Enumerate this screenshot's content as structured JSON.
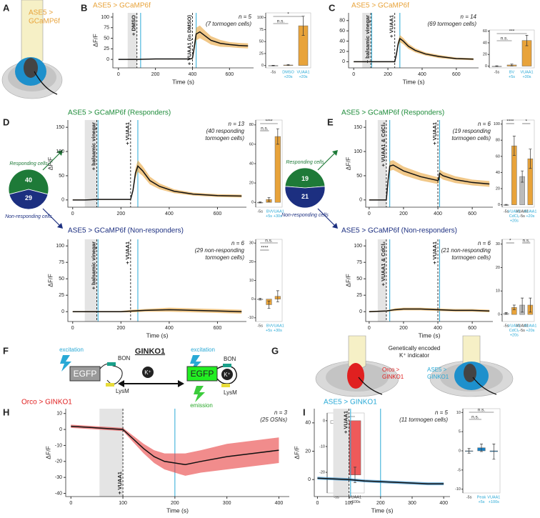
{
  "panel_labels": [
    "A",
    "B",
    "C",
    "D",
    "E",
    "F",
    "G",
    "H",
    "I"
  ],
  "diagram_a": {
    "lines": [
      "ASE5 >",
      "GCaMP6f"
    ]
  },
  "diagram_f": {
    "title": "GINKO1",
    "left": {
      "excitation": "excitation",
      "bon": "BON",
      "egfp": "EGFP",
      "lysm": "LysM"
    },
    "ion": "K⁺",
    "right": {
      "excitation": "excitation",
      "bon": "BON",
      "egfp": "EGFP",
      "ion": "K⁺",
      "lysm": "LysM",
      "emission": "emission"
    }
  },
  "diagram_g": {
    "heading": [
      "Genetically encoded",
      "K⁺ indicator"
    ],
    "left_label": [
      "Orco >",
      "GINKO1"
    ],
    "right_label": [
      "ASE5 >",
      "GINKO1"
    ]
  },
  "chart_data": [
    {
      "type": "trace",
      "title": "ASE5 > GCaMP6f",
      "title_color": "#e8a33a",
      "notes": [
        "n = 5",
        "(7 tormogen cells)"
      ],
      "xlabel": "Time (s)",
      "ylabel": "ΔF/F",
      "xlim": [
        -30,
        730
      ],
      "xticks": [
        0,
        200,
        400,
        600
      ],
      "ylim": [
        -20,
        110
      ],
      "yticks": [
        0,
        25,
        50,
        75,
        100
      ],
      "shade": [
        50,
        100
      ],
      "events": [
        {
          "label": "+ DMSO",
          "x": 100
        },
        {
          "label": "+ VUAA1 (in DMSO)",
          "x": 400
        }
      ],
      "cyan_x": [
        120,
        420
      ],
      "x": [
        0,
        50,
        100,
        200,
        300,
        390,
        400,
        410,
        420,
        440,
        470,
        500,
        550,
        600,
        650,
        700
      ],
      "values": [
        0,
        0,
        0,
        1,
        1,
        1,
        3,
        30,
        60,
        65,
        55,
        45,
        38,
        35,
        33,
        32
      ],
      "errors": [
        0,
        1,
        1,
        1,
        1,
        1,
        2,
        10,
        15,
        15,
        12,
        10,
        8,
        6,
        6,
        6
      ],
      "line_color": "#111111",
      "band_color": "#e8a33a"
    },
    {
      "type": "bar",
      "ylim": [
        -5,
        110
      ],
      "yticks": [
        0,
        25,
        50,
        75,
        100
      ],
      "categories": [
        [
          "-5s"
        ],
        [
          "DMSO",
          "+20s"
        ],
        [
          "VUAA1",
          "+20s"
        ]
      ],
      "values": [
        0,
        1,
        83
      ],
      "errors": [
        0.5,
        1,
        20
      ],
      "colors": [
        "#ffffff",
        "#e8a33a",
        "#e8a33a"
      ],
      "label_colors": [
        "#333333",
        "#29a9d6",
        "#29a9d6"
      ],
      "significance": [
        {
          "label": "n.s.",
          "from": 0,
          "to": 1
        },
        {
          "label": "*",
          "from": 0,
          "to": 2
        }
      ]
    },
    {
      "type": "trace",
      "title": "ASE5 > GCaMP6f",
      "title_color": "#e8a33a",
      "notes": [
        "n = 14",
        "(69 tormogen cells)"
      ],
      "xlabel": "Time (s)",
      "xlim": [
        -30,
        730
      ],
      "xticks": [
        0,
        200,
        400,
        600
      ],
      "ylim": [
        -12,
        95
      ],
      "yticks": [
        0,
        20,
        40,
        60,
        80
      ],
      "shade": [
        50,
        100
      ],
      "events": [
        {
          "label": "+ balsamic vinegar",
          "x": 100
        },
        {
          "label": "+ VUAA1",
          "x": 240
        }
      ],
      "cyan_x": [
        105,
        270
      ],
      "x": [
        0,
        50,
        100,
        150,
        200,
        240,
        250,
        260,
        270,
        290,
        320,
        360,
        420,
        500,
        600,
        700
      ],
      "values": [
        0,
        0,
        0,
        0,
        0,
        0,
        15,
        35,
        45,
        40,
        30,
        22,
        15,
        10,
        6,
        5
      ],
      "errors": [
        1,
        1,
        1,
        1,
        1,
        1,
        4,
        6,
        7,
        6,
        5,
        4,
        3,
        3,
        2,
        2
      ],
      "line_color": "#111111",
      "band_color": "#e8a33a"
    },
    {
      "type": "bar",
      "ylim": [
        -3,
        62
      ],
      "yticks": [
        0,
        20,
        40,
        60
      ],
      "categories": [
        [
          "-5s"
        ],
        [
          "BV",
          "+5s"
        ],
        [
          "VUAA1",
          "+30s"
        ]
      ],
      "values": [
        0,
        2,
        44
      ],
      "errors": [
        0.5,
        1.5,
        9
      ],
      "colors": [
        "#ffffff",
        "#e8a33a",
        "#e8a33a"
      ],
      "label_colors": [
        "#333333",
        "#29a9d6",
        "#29a9d6"
      ],
      "significance": [
        {
          "label": "n.s.",
          "from": 0,
          "to": 1
        },
        {
          "label": "***",
          "from": 0,
          "to": 2
        }
      ]
    },
    {
      "type": "trace",
      "title": "ASE5 > GCaMP6f (Responders)",
      "title_color": "#1e8c3a",
      "notes": [
        "n = 13",
        "(40 responding",
        "tormogen cells)"
      ],
      "ylabel": "ΔF/F",
      "xlim": [
        -20,
        720
      ],
      "xticks": [
        0,
        200,
        400,
        600
      ],
      "ylim": [
        -15,
        165
      ],
      "yticks": [
        0,
        50,
        100,
        150
      ],
      "shade": [
        50,
        100
      ],
      "events": [
        {
          "label": "+ balsamic vinegar",
          "x": 100
        },
        {
          "label": "+ VUAA1",
          "x": 240
        }
      ],
      "cyan_x": [
        105,
        270
      ],
      "x": [
        0,
        50,
        100,
        150,
        200,
        240,
        250,
        260,
        270,
        290,
        320,
        360,
        420,
        500,
        600,
        700
      ],
      "values": [
        0,
        0,
        1,
        1,
        1,
        1,
        20,
        55,
        70,
        60,
        40,
        28,
        18,
        12,
        9,
        8
      ],
      "errors": [
        1,
        1,
        1,
        1,
        1,
        1,
        5,
        10,
        12,
        10,
        8,
        6,
        4,
        3,
        3,
        3
      ],
      "line_color": "#111111",
      "band_color": "#e8a33a"
    },
    {
      "type": "bar",
      "ylim": [
        -5,
        85
      ],
      "yticks": [
        0,
        20,
        40,
        60,
        80
      ],
      "categories": [
        [
          "-5s"
        ],
        [
          "BV",
          "+5s"
        ],
        [
          "VUAA1",
          "+30s"
        ]
      ],
      "values": [
        0,
        3,
        68
      ],
      "errors": [
        0.5,
        2,
        8
      ],
      "colors": [
        "#ffffff",
        "#e8a33a",
        "#e8a33a"
      ],
      "label_colors": [
        "#333333",
        "#29a9d6",
        "#29a9d6"
      ],
      "significance": [
        {
          "label": "n.s.",
          "from": 0,
          "to": 1
        },
        {
          "label": "****",
          "from": 0,
          "to": 2
        }
      ]
    },
    {
      "type": "trace",
      "title": "ASE5 > GCaMP6f (Non-responders)",
      "title_color": "#1c2f80",
      "notes": [
        "n = 6",
        "(29 non-responding",
        "tormogen cells)"
      ],
      "xlabel": "Time (s)",
      "ylabel": "ΔF/F",
      "xlim": [
        -20,
        720
      ],
      "xticks": [
        0,
        200,
        400,
        600
      ],
      "ylim": [
        -15,
        110
      ],
      "yticks": [
        0,
        25,
        50,
        75,
        100
      ],
      "shade": [
        50,
        100
      ],
      "events": [
        {
          "label": "+ balsamic vinegar",
          "x": 100
        },
        {
          "label": "+ VUAA1",
          "x": 240
        }
      ],
      "cyan_x": [
        105,
        270
      ],
      "x": [
        0,
        100,
        200,
        250,
        300,
        400,
        500,
        600,
        700
      ],
      "values": [
        0,
        0,
        0,
        1,
        2,
        3,
        2,
        1,
        0
      ],
      "errors": [
        1,
        1,
        1,
        2,
        2,
        3,
        3,
        3,
        3
      ],
      "line_color": "#111111",
      "band_color": "#e8a33a"
    },
    {
      "type": "bar",
      "ylim": [
        -12,
        32
      ],
      "yticks": [
        -10,
        0,
        10,
        20,
        30
      ],
      "categories": [
        [
          "-5s"
        ],
        [
          "BV",
          "+5s"
        ],
        [
          "VUAA1",
          "+30s"
        ]
      ],
      "values": [
        0,
        -3,
        1.5
      ],
      "errors": [
        0.5,
        2,
        3
      ],
      "colors": [
        "#ffffff",
        "#e8a33a",
        "#e8a33a"
      ],
      "label_colors": [
        "#333333",
        "#29a9d6",
        "#29a9d6"
      ],
      "significance": [
        {
          "label": "****",
          "from": 0,
          "to": 1
        },
        {
          "label": "n.s.",
          "from": 0,
          "to": 2
        }
      ]
    },
    {
      "type": "pie",
      "categories": [
        "Responding cells",
        "Non-responding cells"
      ],
      "values": [
        40,
        29
      ],
      "colors": [
        "#1e7a38",
        "#1c2f80"
      ]
    },
    {
      "type": "trace",
      "title": "ASE5 > GCaMP6f (Responders)",
      "title_color": "#1e8c3a",
      "notes": [
        "n = 6",
        "(19 responding",
        "tormogen cells)"
      ],
      "ylabel": "ΔF/F",
      "xlim": [
        -20,
        720
      ],
      "xticks": [
        0,
        200,
        400,
        600
      ],
      "ylim": [
        -15,
        165
      ],
      "yticks": [
        0,
        50,
        100,
        150
      ],
      "shade": [
        50,
        100
      ],
      "events": [
        {
          "label": "+ VUAA1 & CdCl₂",
          "x": 100
        },
        {
          "label": "+ VUAA1",
          "x": 400
        }
      ],
      "cyan_x": [
        120,
        410
      ],
      "x": [
        0,
        50,
        100,
        110,
        120,
        140,
        200,
        300,
        400,
        405,
        410,
        430,
        500,
        600,
        700
      ],
      "values": [
        0,
        0,
        0,
        40,
        70,
        72,
        60,
        48,
        40,
        42,
        55,
        50,
        42,
        36,
        33
      ],
      "errors": [
        1,
        1,
        1,
        8,
        10,
        10,
        9,
        8,
        7,
        7,
        8,
        8,
        7,
        6,
        6
      ],
      "line_color": "#111111",
      "band_color": "#e8a33a"
    },
    {
      "type": "bar",
      "ylim": [
        -3,
        105
      ],
      "yticks": [
        0,
        20,
        40,
        60,
        80,
        100
      ],
      "categories": [
        [
          "-5s"
        ],
        [
          "VUAA1",
          "CdCl₂",
          "+20s"
        ],
        [
          "VUAA1",
          "-5s"
        ],
        [
          "VUAA1",
          "+20s"
        ]
      ],
      "values": [
        0,
        73,
        35,
        57
      ],
      "errors": [
        0.5,
        12,
        7,
        12
      ],
      "colors": [
        "#ffffff",
        "#e8a33a",
        "#bbbbbb",
        "#e8a33a"
      ],
      "label_colors": [
        "#333333",
        "#29a9d6",
        "#333333",
        "#29a9d6"
      ],
      "significance": [
        {
          "label": "****",
          "from": 0,
          "to": 1
        },
        {
          "label": "*",
          "from": 2,
          "to": 3
        }
      ]
    },
    {
      "type": "trace",
      "title": "ASE5 > GCaMP6f (Non-responders)",
      "title_color": "#1c2f80",
      "notes": [
        "n = 6",
        "(21 non-responding",
        "tormogen cells)"
      ],
      "xlabel": "Time (s)",
      "ylabel": "ΔF/F",
      "xlim": [
        -20,
        720
      ],
      "xticks": [
        0,
        200,
        400,
        600
      ],
      "ylim": [
        -15,
        110
      ],
      "yticks": [
        0,
        25,
        50,
        75,
        100
      ],
      "shade": [
        50,
        100
      ],
      "events": [
        {
          "label": "+ VUAA1 & CdCl₂",
          "x": 100
        },
        {
          "label": "+ VUAA1",
          "x": 400
        }
      ],
      "cyan_x": [
        120,
        410
      ],
      "x": [
        0,
        100,
        150,
        200,
        300,
        400,
        500,
        600,
        700
      ],
      "values": [
        0,
        1,
        3,
        4,
        4,
        3,
        2,
        2,
        1
      ],
      "errors": [
        1,
        1,
        2,
        2,
        2,
        2,
        2,
        2,
        2
      ],
      "line_color": "#111111",
      "band_color": "#e8a33a"
    },
    {
      "type": "bar",
      "ylim": [
        -3,
        32
      ],
      "yticks": [
        0,
        10,
        20,
        30
      ],
      "categories": [
        [
          "-5s"
        ],
        [
          "VUAA1",
          "CdCl₂",
          "+20s"
        ],
        [
          "VUAA1",
          "-5s"
        ],
        [
          "VUAA1",
          "+20s"
        ]
      ],
      "values": [
        0.5,
        3,
        4,
        4
      ],
      "errors": [
        0.3,
        1,
        3,
        3
      ],
      "colors": [
        "#ffffff",
        "#e8a33a",
        "#bbbbbb",
        "#e8a33a"
      ],
      "label_colors": [
        "#333333",
        "#29a9d6",
        "#333333",
        "#29a9d6"
      ],
      "significance": [
        {
          "label": "*",
          "from": 0,
          "to": 1
        },
        {
          "label": "n.s.",
          "from": 2,
          "to": 3
        }
      ]
    },
    {
      "type": "pie",
      "categories": [
        "Responding cells",
        "Non-responding cells"
      ],
      "values": [
        19,
        21
      ],
      "colors": [
        "#1e7a38",
        "#1c2f80"
      ]
    },
    {
      "type": "trace",
      "title": "Orco > GINKO1",
      "title_color": "#e02020",
      "notes": [
        "n = 3",
        "(25 OSNs)"
      ],
      "xlabel": "Time (s)",
      "ylabel": "ΔF/F",
      "xlim": [
        -10,
        420
      ],
      "xticks": [
        0,
        100,
        200,
        300,
        400
      ],
      "ylim": [
        -42,
        13
      ],
      "yticks": [
        10,
        0,
        -10,
        -20,
        -30,
        -40
      ],
      "shade": [
        55,
        100
      ],
      "events": [
        {
          "label": "+ VUAA1",
          "x": 100
        }
      ],
      "cyan_x": [
        200
      ],
      "x": [
        0,
        50,
        100,
        120,
        140,
        160,
        180,
        200,
        220,
        250,
        300,
        350,
        400
      ],
      "values": [
        2,
        1,
        0,
        -6,
        -12,
        -17,
        -20,
        -21,
        -22,
        -20,
        -17,
        -15,
        -13
      ],
      "errors": [
        1,
        1,
        1,
        2,
        3,
        4,
        5,
        6,
        7,
        7,
        8,
        8,
        8
      ],
      "line_color": "#111111",
      "band_color": "#e84040"
    },
    {
      "type": "bar",
      "ylim": [
        -28,
        3
      ],
      "yticks": [
        0,
        -10,
        -20
      ],
      "categories": [
        [
          "-5s"
        ],
        [
          "VUAA1",
          "+100s"
        ]
      ],
      "values": [
        -1,
        -21
      ],
      "errors": [
        1,
        3
      ],
      "colors": [
        "#ffffff",
        "#ee5a5a"
      ],
      "label_colors": [
        "#333333",
        "#333333"
      ],
      "significance": [
        {
          "label": "*",
          "from": 0,
          "to": 1
        }
      ]
    },
    {
      "type": "trace",
      "title": "ASE5 > GINKO1",
      "title_color": "#29a9d6",
      "notes": [
        "n = 5",
        "(11 tormogen cells)"
      ],
      "xlabel": "Time (s)",
      "ylabel": "ΔF/F",
      "xlim": [
        -10,
        420
      ],
      "xticks": [
        0,
        100,
        200,
        300,
        400
      ],
      "ylim": [
        -12,
        50
      ],
      "yticks": [
        0,
        20,
        40
      ],
      "shade": [
        50,
        100
      ],
      "events": [
        {
          "label": "+ VUAA1",
          "x": 100
        }
      ],
      "cyan_x": [
        105,
        200
      ],
      "x": [
        0,
        50,
        100,
        150,
        200,
        250,
        300,
        350,
        400
      ],
      "values": [
        1,
        0.5,
        0,
        -1,
        -1.5,
        -2,
        -2.5,
        -3,
        -3
      ],
      "errors": [
        1,
        1,
        1,
        1,
        1,
        1,
        1,
        1,
        1
      ],
      "line_color": "#111111",
      "band_color": "#1a7fc1"
    },
    {
      "type": "bar",
      "ylim": [
        -11,
        11
      ],
      "yticks": [
        -10,
        -5,
        0,
        5,
        10
      ],
      "categories": [
        [
          "-5s"
        ],
        [
          "Peak",
          "+5s"
        ],
        [
          "VUAA1",
          "+100s"
        ]
      ],
      "values": [
        0,
        0.8,
        -0.2
      ],
      "errors": [
        0.6,
        1,
        2
      ],
      "colors": [
        "#1a7fc1",
        "#1a7fc1",
        "#1a7fc1"
      ],
      "label_colors": [
        "#333333",
        "#29a9d6",
        "#29a9d6"
      ],
      "significance": [
        {
          "label": "n.s.",
          "from": 0,
          "to": 1
        },
        {
          "label": "n.s.",
          "from": 0,
          "to": 2
        }
      ]
    }
  ]
}
